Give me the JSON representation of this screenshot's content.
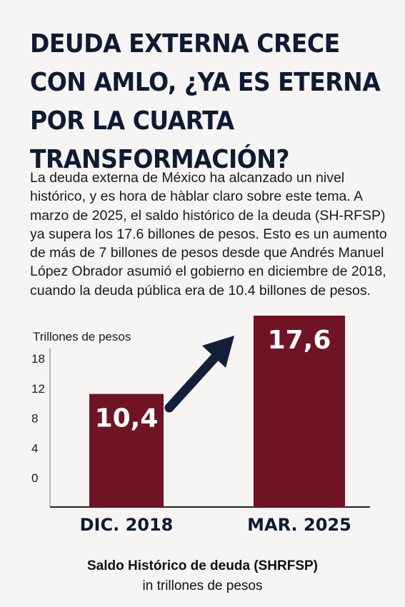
{
  "headline_lines": [
    "DEUDA EXTERNA CRECE",
    "CON AMLO, ¿YA ES ETERNA",
    "POR LA CUARTA",
    "TRANSFORMACIÓN?"
  ],
  "body_text": "La deuda externa de México ha alcanzado un nivel histórico, y es hora de hàblar claro sobre este tema. A marzo de 2025, el saldo histórico de la deuda (SH-RFSP) ya supera los 17.6 billones de pesos. Esto es un aumento de más de 7 billones de pesos desde que Andrés Manuel López Obrador asumió el gobierno en diciembre de 2018, cuando la deuda pública era de 10.4 billones de pesos.",
  "colors": {
    "bar": "#6e1425",
    "headline": "#0f1a33",
    "arrow": "#13203a"
  },
  "chart_data": {
    "type": "bar",
    "ylabel": "Trillones de pesos",
    "ticks": [
      "0",
      "4",
      "8",
      "12",
      "18"
    ],
    "categories": [
      "DIC. 2018",
      "MAR. 2025"
    ],
    "values": [
      10.4,
      17.6
    ],
    "value_labels": [
      "10,4",
      "17,6"
    ],
    "grid": false,
    "legend": "none",
    "annotations": [
      "upward-arrow"
    ]
  },
  "caption": {
    "line1": "Saldo Histórico de deuda (SHRFSP)",
    "line2": "in trillones de pesos"
  }
}
